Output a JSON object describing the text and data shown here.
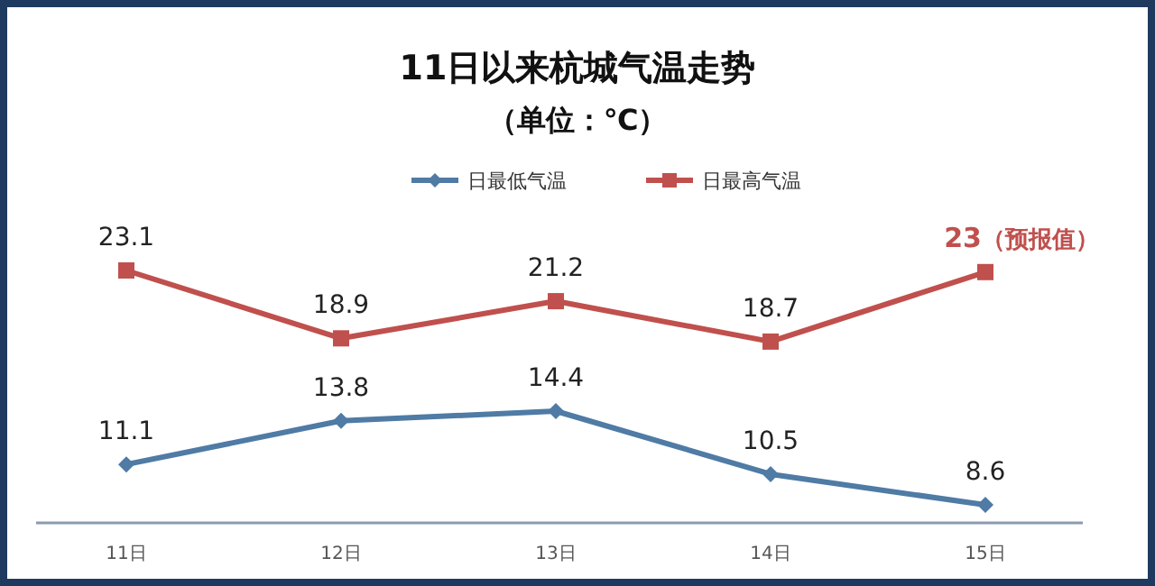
{
  "chart_data": {
    "type": "line",
    "title": "11日以来杭城气温走势",
    "subtitle": "（单位：℃）",
    "categories": [
      "11日",
      "12日",
      "13日",
      "14日",
      "15日"
    ],
    "series": [
      {
        "name": "日最低气温",
        "color": "#4f7ba5",
        "marker": "diamond",
        "values": [
          11.1,
          13.8,
          14.4,
          10.5,
          8.6
        ]
      },
      {
        "name": "日最高气温",
        "color": "#c0504d",
        "marker": "square",
        "values": [
          23.1,
          18.9,
          21.2,
          18.7,
          23
        ]
      }
    ],
    "data_labels": true,
    "legend": "top",
    "annotations": [
      {
        "text": "（预报值）",
        "x": "15日",
        "y": 23
      }
    ]
  }
}
